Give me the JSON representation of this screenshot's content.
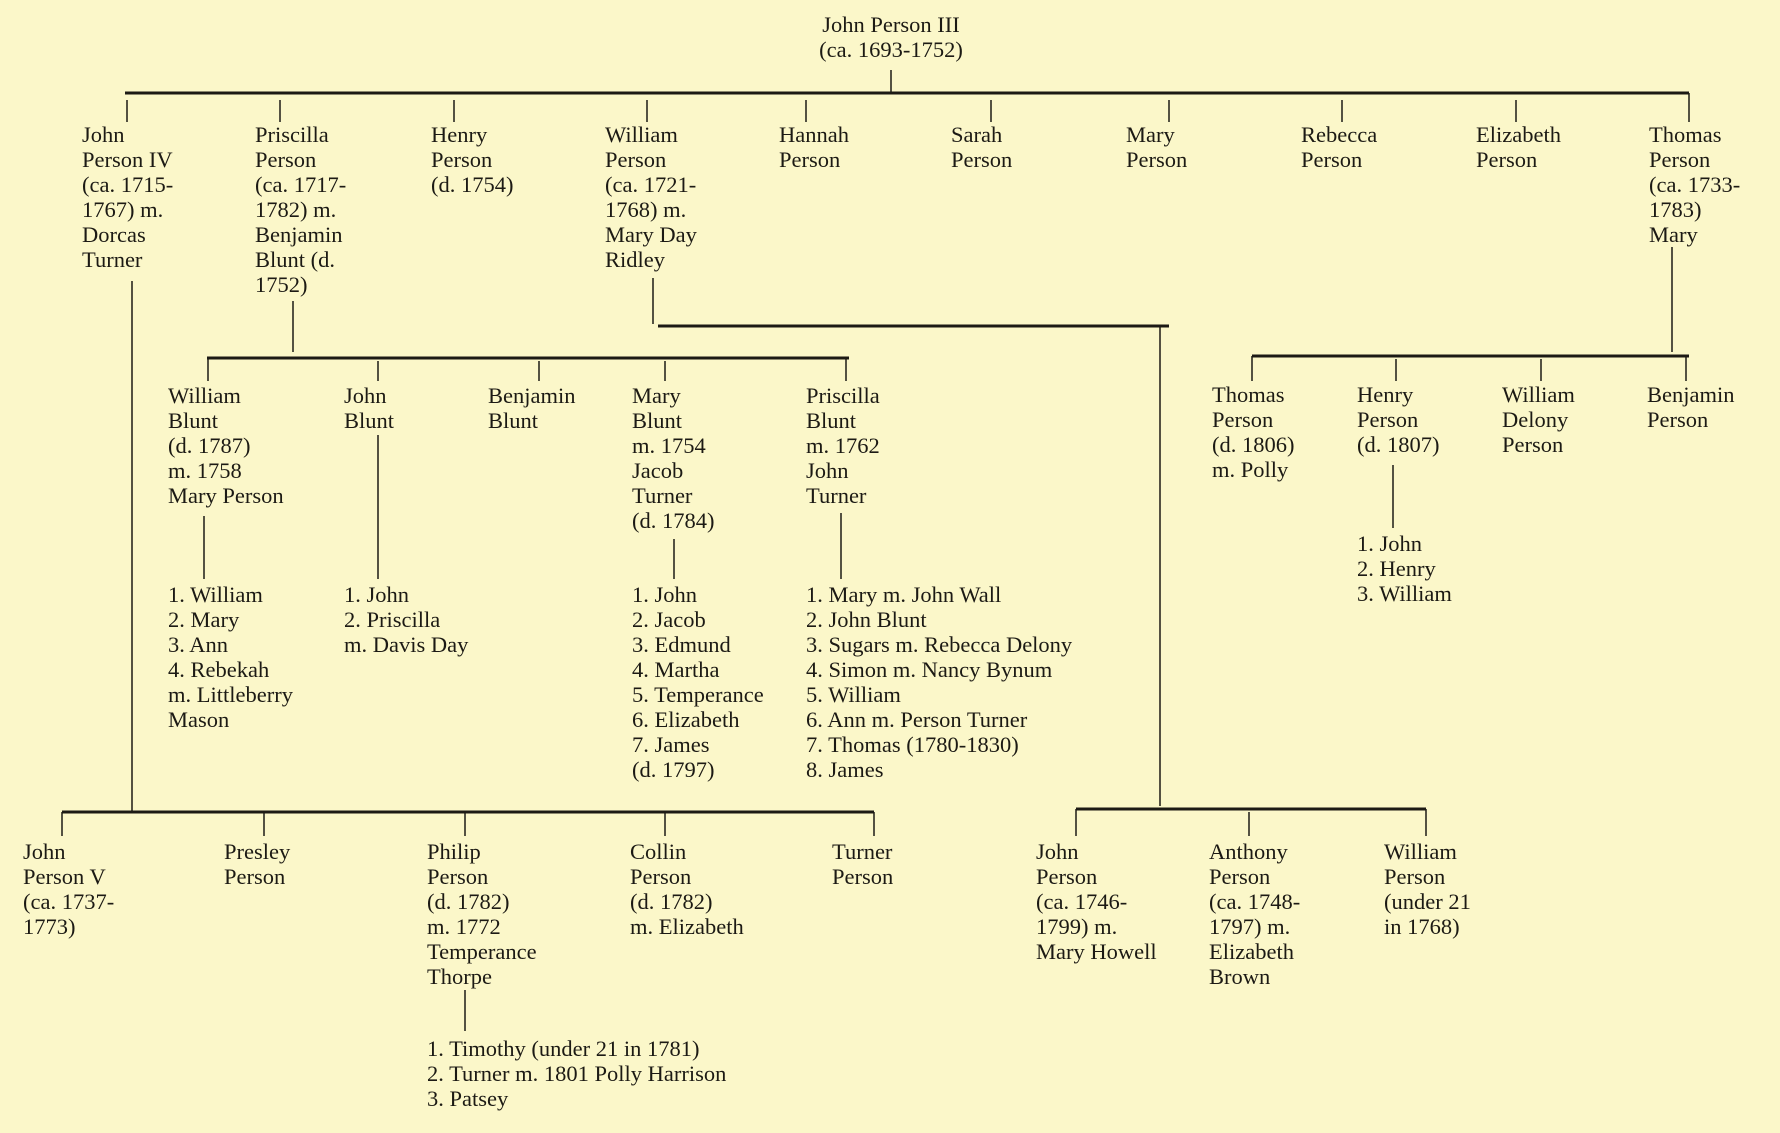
{
  "root": "John Person III\n(ca. 1693-1752)",
  "children": [
    "John\nPerson IV\n (ca. 1715-\n1767) m.\nDorcas\nTurner",
    "Priscilla\nPerson\n (ca. 1717-\n1782) m.\nBenjamin\nBlunt (d.\n1752)",
    "Henry\nPerson\n (d. 1754)",
    "William\nPerson\n (ca. 1721-\n1768) m.\nMary Day\nRidley",
    "Hannah\nPerson",
    "Sarah\nPerson",
    "Mary\nPerson",
    "Rebecca\nPerson",
    "Elizabeth\nPerson",
    "Thomas\nPerson\n (ca. 1733-\n1783)\nMary"
  ],
  "blunt_children": [
    "William\nBlunt\n (d. 1787)\n m. 1758\nMary Person",
    "John\nBlunt",
    "Benjamin\nBlunt",
    "Mary\nBlunt\nm. 1754\nJacob\nTurner\n (d. 1784)",
    "Priscilla\nBlunt\nm. 1762\nJohn\nTurner"
  ],
  "blunt_grandchildren": {
    "william_blunt": "1. William\n2. Mary\n3. Ann\n4. Rebekah\n     m. Littleberry\n     Mason",
    "john_blunt": "1. John\n2. Priscilla\n     m. Davis Day",
    "mary_blunt": "1. John\n2. Jacob\n3. Edmund\n4. Martha\n5. Temperance\n6. Elizabeth\n7. James\n      (d. 1797)",
    "priscilla_blunt": "1. Mary m. John Wall\n2. John Blunt\n3. Sugars m. Rebecca Delony\n4. Simon m. Nancy Bynum\n5. William\n6. Ann m. Person Turner\n7. Thomas (1780-1830)\n8. James"
  },
  "john_iv_children": [
    "John\nPerson V\n(ca. 1737-\n1773)",
    "Presley\nPerson",
    "Philip\nPerson\n (d. 1782)\nm. 1772\nTemperance\nThorpe",
    "Collin\nPerson\n (d. 1782)\nm. Elizabeth",
    "Turner\nPerson"
  ],
  "philip_children": "1. Timothy (under 21 in 1781)\n2. Turner m. 1801 Polly Harrison\n3. Patsey",
  "william_children": [
    "John\nPerson\n (ca. 1746-\n1799) m.\nMary Howell",
    "Anthony\nPerson\n (ca. 1748-\n1797) m.\nElizabeth\nBrown",
    "William\nPerson\n (under 21\nin 1768)"
  ],
  "thomas_children": [
    "Thomas\nPerson\n (d. 1806)\nm. Polly",
    "Henry\nPerson\n (d. 1807)",
    "William\nDelony\nPerson",
    "Benjamin\nPerson"
  ],
  "henry_children": "1. John\n2. Henry\n3. William"
}
